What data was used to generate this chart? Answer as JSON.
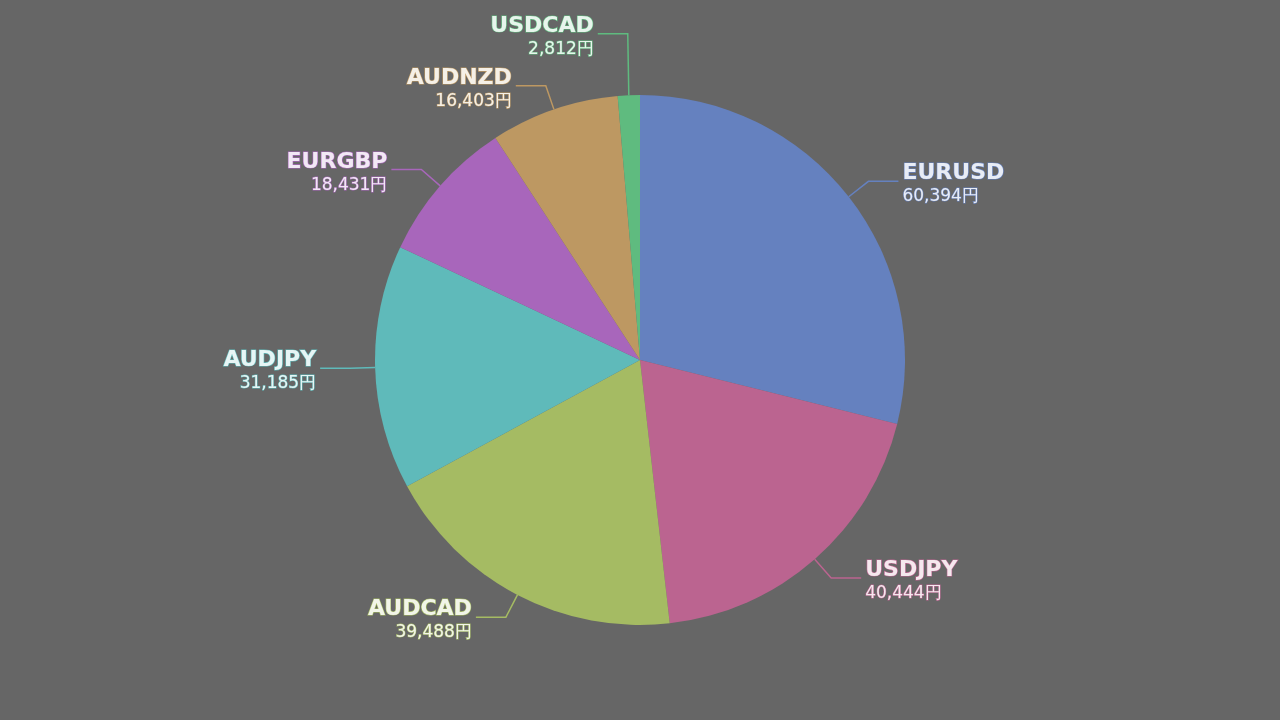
{
  "chart_data": {
    "type": "pie",
    "categories": [
      "EURUSD",
      "USDJPY",
      "AUDCAD",
      "AUDJPY",
      "EURGBP",
      "AUDNZD",
      "USDCAD"
    ],
    "values": [
      60394,
      40444,
      39488,
      31185,
      18431,
      16403,
      2812
    ],
    "value_labels": [
      "60,394円",
      "40,444円",
      "39,488円",
      "31,185円",
      "18,431円",
      "16,403円",
      "2,812円"
    ],
    "colors": [
      "#6581bf",
      "#bb6490",
      "#a5bb63",
      "#5fbaba",
      "#a866bb",
      "#bd9862",
      "#5fbb7f"
    ]
  }
}
